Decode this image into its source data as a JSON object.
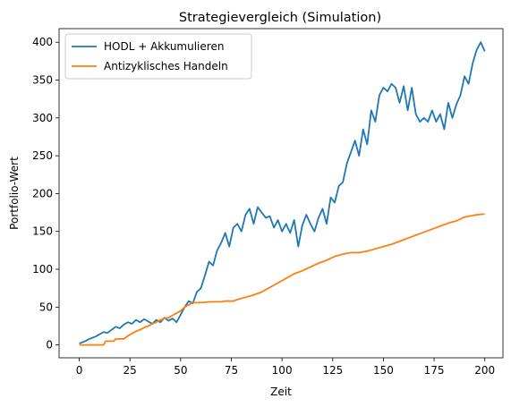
{
  "chart_data": {
    "type": "line",
    "title": "Strategievergleich (Simulation)",
    "xlabel": "Zeit",
    "ylabel": "Portfolio-Wert",
    "xlim": [
      -9.95,
      208.95
    ],
    "ylim": [
      -17,
      418
    ],
    "xticks": [
      0,
      25,
      50,
      75,
      100,
      125,
      150,
      175,
      200
    ],
    "yticks": [
      0,
      50,
      100,
      150,
      200,
      250,
      300,
      350,
      400
    ],
    "grid": false,
    "legend_position": "top-left",
    "series": [
      {
        "name": "HODL + Akkumulieren",
        "color": "#1f77b4",
        "points": [
          [
            0,
            2
          ],
          [
            3,
            5
          ],
          [
            5,
            8
          ],
          [
            8,
            11
          ],
          [
            10,
            14
          ],
          [
            12,
            17
          ],
          [
            14,
            16
          ],
          [
            16,
            20
          ],
          [
            18,
            24
          ],
          [
            20,
            22
          ],
          [
            22,
            27
          ],
          [
            24,
            30
          ],
          [
            26,
            28
          ],
          [
            28,
            33
          ],
          [
            30,
            30
          ],
          [
            32,
            34
          ],
          [
            34,
            31
          ],
          [
            36,
            28
          ],
          [
            38,
            33
          ],
          [
            40,
            30
          ],
          [
            42,
            36
          ],
          [
            44,
            32
          ],
          [
            46,
            35
          ],
          [
            48,
            30
          ],
          [
            50,
            40
          ],
          [
            52,
            50
          ],
          [
            54,
            58
          ],
          [
            56,
            55
          ],
          [
            58,
            70
          ],
          [
            60,
            75
          ],
          [
            62,
            92
          ],
          [
            64,
            110
          ],
          [
            66,
            105
          ],
          [
            68,
            125
          ],
          [
            70,
            135
          ],
          [
            72,
            148
          ],
          [
            74,
            130
          ],
          [
            76,
            155
          ],
          [
            78,
            160
          ],
          [
            80,
            150
          ],
          [
            82,
            172
          ],
          [
            84,
            180
          ],
          [
            86,
            160
          ],
          [
            88,
            182
          ],
          [
            90,
            175
          ],
          [
            92,
            168
          ],
          [
            94,
            170
          ],
          [
            96,
            155
          ],
          [
            98,
            165
          ],
          [
            100,
            150
          ],
          [
            102,
            160
          ],
          [
            104,
            148
          ],
          [
            106,
            165
          ],
          [
            108,
            130
          ],
          [
            110,
            158
          ],
          [
            112,
            172
          ],
          [
            114,
            160
          ],
          [
            116,
            150
          ],
          [
            118,
            168
          ],
          [
            120,
            180
          ],
          [
            122,
            160
          ],
          [
            124,
            195
          ],
          [
            126,
            188
          ],
          [
            128,
            210
          ],
          [
            130,
            215
          ],
          [
            132,
            240
          ],
          [
            134,
            255
          ],
          [
            136,
            270
          ],
          [
            138,
            250
          ],
          [
            140,
            285
          ],
          [
            142,
            265
          ],
          [
            144,
            310
          ],
          [
            146,
            295
          ],
          [
            148,
            330
          ],
          [
            150,
            340
          ],
          [
            152,
            335
          ],
          [
            154,
            345
          ],
          [
            156,
            340
          ],
          [
            158,
            320
          ],
          [
            160,
            342
          ],
          [
            162,
            310
          ],
          [
            164,
            340
          ],
          [
            166,
            305
          ],
          [
            168,
            295
          ],
          [
            170,
            300
          ],
          [
            172,
            295
          ],
          [
            174,
            310
          ],
          [
            176,
            295
          ],
          [
            178,
            305
          ],
          [
            180,
            285
          ],
          [
            182,
            320
          ],
          [
            184,
            300
          ],
          [
            186,
            318
          ],
          [
            188,
            330
          ],
          [
            190,
            355
          ],
          [
            192,
            345
          ],
          [
            194,
            372
          ],
          [
            196,
            390
          ],
          [
            198,
            400
          ],
          [
            200,
            388
          ]
        ]
      },
      {
        "name": "Antizyklisches Handeln",
        "color": "#ff7f0e",
        "points": [
          [
            0,
            0
          ],
          [
            12,
            0
          ],
          [
            13,
            5
          ],
          [
            17,
            5
          ],
          [
            18,
            8
          ],
          [
            22,
            8
          ],
          [
            24,
            12
          ],
          [
            26,
            15
          ],
          [
            28,
            18
          ],
          [
            30,
            20
          ],
          [
            32,
            23
          ],
          [
            34,
            25
          ],
          [
            36,
            28
          ],
          [
            38,
            30
          ],
          [
            40,
            33
          ],
          [
            42,
            35
          ],
          [
            44,
            36
          ],
          [
            46,
            39
          ],
          [
            48,
            42
          ],
          [
            50,
            45
          ],
          [
            52,
            50
          ],
          [
            54,
            53
          ],
          [
            56,
            56
          ],
          [
            60,
            56
          ],
          [
            65,
            57
          ],
          [
            70,
            57
          ],
          [
            72,
            58
          ],
          [
            76,
            58
          ],
          [
            78,
            60
          ],
          [
            82,
            63
          ],
          [
            86,
            66
          ],
          [
            90,
            70
          ],
          [
            94,
            76
          ],
          [
            98,
            82
          ],
          [
            102,
            88
          ],
          [
            106,
            94
          ],
          [
            110,
            98
          ],
          [
            114,
            103
          ],
          [
            118,
            108
          ],
          [
            122,
            112
          ],
          [
            126,
            117
          ],
          [
            130,
            120
          ],
          [
            134,
            122
          ],
          [
            138,
            122
          ],
          [
            142,
            124
          ],
          [
            146,
            127
          ],
          [
            150,
            130
          ],
          [
            154,
            133
          ],
          [
            158,
            137
          ],
          [
            162,
            141
          ],
          [
            166,
            145
          ],
          [
            170,
            149
          ],
          [
            174,
            153
          ],
          [
            178,
            157
          ],
          [
            182,
            161
          ],
          [
            186,
            164
          ],
          [
            190,
            169
          ],
          [
            194,
            171
          ],
          [
            196,
            172
          ],
          [
            200,
            173
          ]
        ]
      }
    ]
  }
}
